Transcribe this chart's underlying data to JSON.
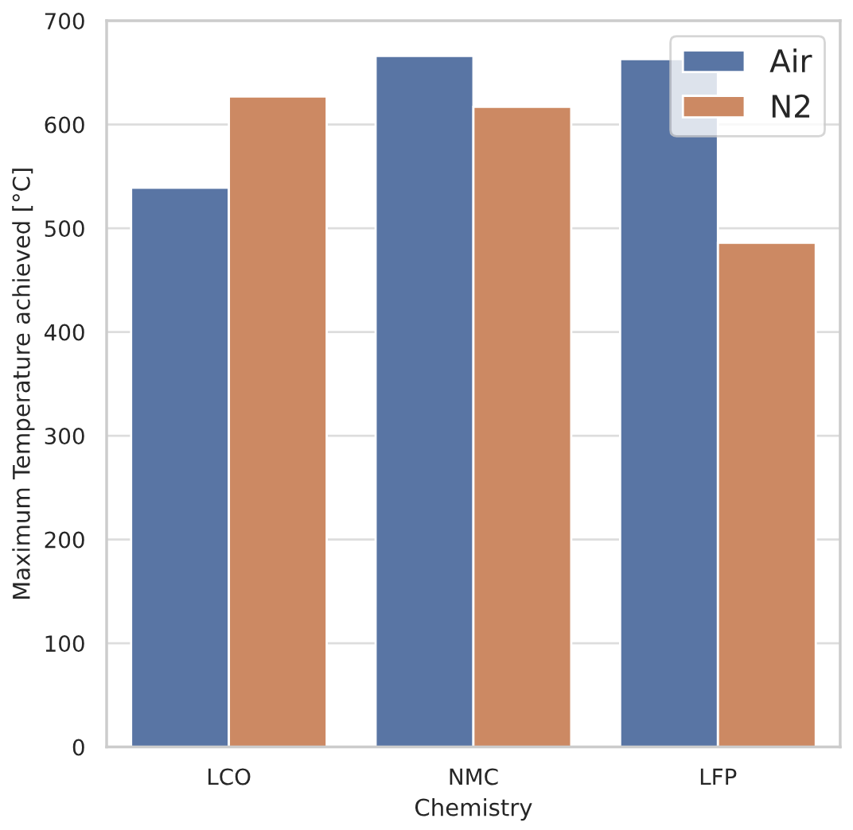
{
  "chart_data": {
    "type": "bar",
    "xlabel": "Chemistry",
    "ylabel": "Maximum Temperature achieved [°C]",
    "categories": [
      "LCO",
      "NMC",
      "LFP"
    ],
    "series": [
      {
        "name": "Air",
        "color": "#5975a4",
        "values": [
          539,
          666,
          663
        ]
      },
      {
        "name": "N2",
        "color": "#cc8963",
        "values": [
          627,
          617,
          486
        ]
      }
    ],
    "ylim": [
      0,
      700
    ],
    "yticks": [
      0,
      100,
      200,
      300,
      400,
      500,
      600,
      700
    ],
    "grid": "y",
    "legend": "top right"
  }
}
